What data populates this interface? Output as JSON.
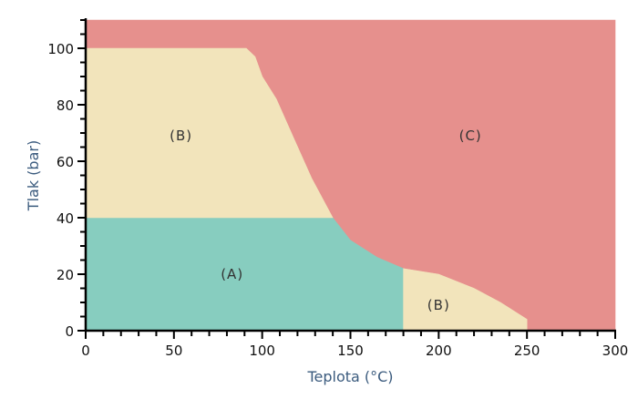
{
  "chart_data": {
    "type": "area",
    "title": "",
    "xlabel": "Teplota (°C)",
    "ylabel": "Tlak (bar)",
    "xlim": [
      0,
      300
    ],
    "ylim": [
      0,
      110
    ],
    "x_ticks": [
      0,
      50,
      100,
      150,
      200,
      250,
      300
    ],
    "y_ticks": [
      0,
      20,
      40,
      60,
      80,
      100
    ],
    "grid": false,
    "legend": "none",
    "regions": [
      {
        "label": "(A)",
        "color": "#87cdbf",
        "label_at": [
          83,
          20
        ],
        "polygon": [
          [
            0,
            0
          ],
          [
            180,
            0
          ],
          [
            180,
            22
          ],
          [
            165,
            26
          ],
          [
            150,
            32
          ],
          [
            140,
            40
          ],
          [
            0,
            40
          ]
        ]
      },
      {
        "label": "(B)",
        "color": "#f2e4bb",
        "label_at": [
          54,
          69
        ],
        "polygon": [
          [
            0,
            40
          ],
          [
            140,
            40
          ],
          [
            128,
            54
          ],
          [
            118,
            68
          ],
          [
            108,
            82
          ],
          [
            100,
            90
          ],
          [
            96,
            97
          ],
          [
            91,
            100
          ],
          [
            0,
            100
          ]
        ]
      },
      {
        "label": "(B)",
        "color": "#f2e4bb",
        "label_at": [
          200,
          9
        ],
        "polygon": [
          [
            180,
            0
          ],
          [
            250,
            0
          ],
          [
            250,
            4
          ],
          [
            235,
            10
          ],
          [
            220,
            15
          ],
          [
            200,
            20
          ],
          [
            180,
            22
          ]
        ]
      },
      {
        "label": "(C)",
        "color": "#e6908d",
        "label_at": [
          218,
          69
        ],
        "polygon": [
          [
            0,
            110
          ],
          [
            300,
            110
          ],
          [
            300,
            0
          ],
          [
            250,
            0
          ],
          [
            250,
            4
          ],
          [
            235,
            10
          ],
          [
            220,
            15
          ],
          [
            200,
            20
          ],
          [
            180,
            22
          ],
          [
            165,
            26
          ],
          [
            150,
            32
          ],
          [
            140,
            40
          ],
          [
            128,
            54
          ],
          [
            118,
            68
          ],
          [
            108,
            82
          ],
          [
            100,
            90
          ],
          [
            96,
            97
          ],
          [
            91,
            100
          ],
          [
            0,
            100
          ]
        ]
      }
    ]
  }
}
